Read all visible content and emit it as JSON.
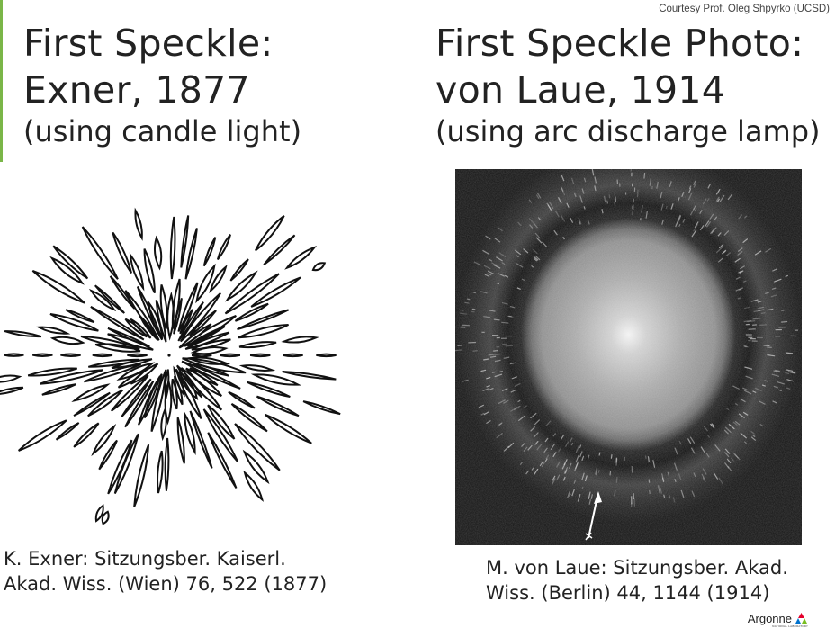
{
  "slide": {
    "credit": "Courtesy Prof. Oleg Shpyrko (UCSD)",
    "left": {
      "title_line1": "First Speckle:",
      "title_line2": "Exner, 1877",
      "subtitle": "(using candle light)",
      "caption_line1": "K. Exner: Sitzungsber. Kaiserl.",
      "caption_line2": "Akad. Wiss. (Wien) 76, 522 (1877)"
    },
    "right": {
      "title_line1": "First Speckle Photo:",
      "title_line2": "von Laue, 1914",
      "subtitle": "(using arc discharge lamp)",
      "caption_line1": "M. von Laue: Sitzungsber. Akad.",
      "caption_line2": "Wiss. (Berlin) 44, 1144 (1914)"
    },
    "logo": {
      "name": "Argonne",
      "tagline": "NATIONAL LABORATORY"
    }
  },
  "colors": {
    "accent_bar": "#7ab648",
    "logo_triangle_1": "#e4002b",
    "logo_triangle_2": "#0072ce",
    "logo_triangle_3": "#78be20"
  }
}
